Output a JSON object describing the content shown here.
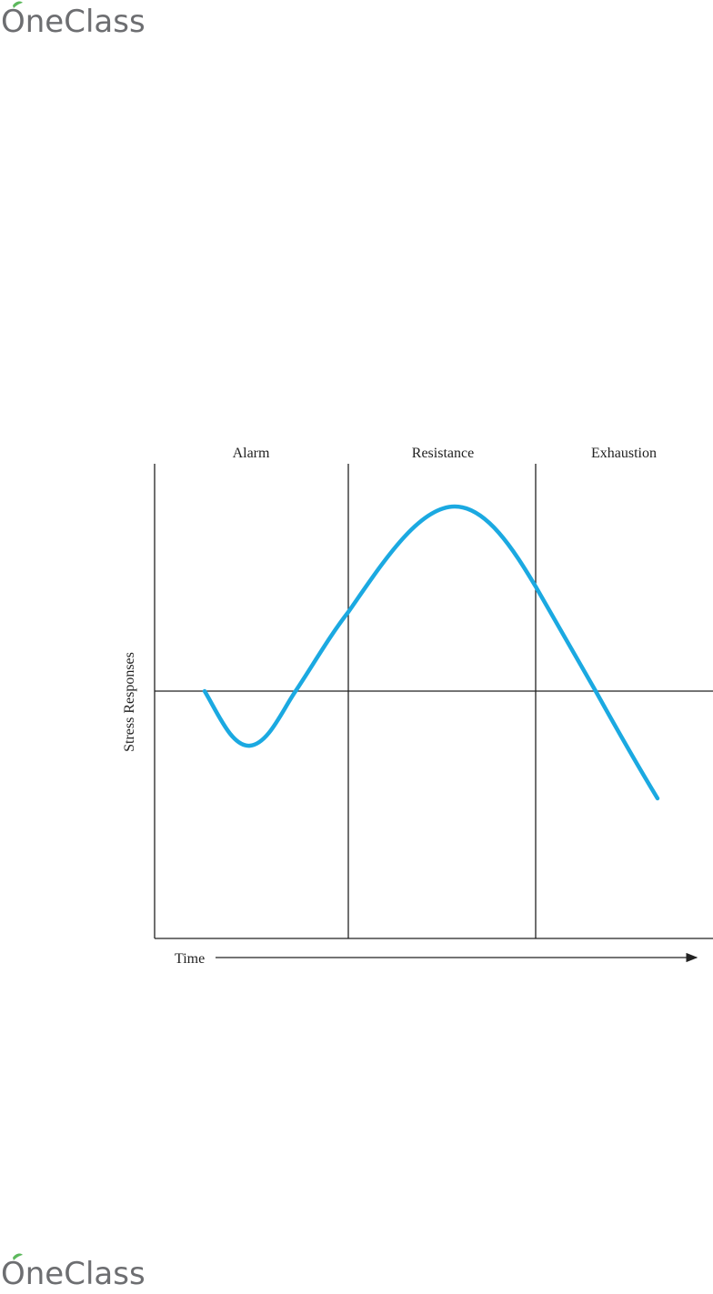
{
  "header": {
    "logo": "OneClass"
  },
  "diagram": {
    "phases": [
      "Alarm",
      "Resistance",
      "Exhaustion"
    ],
    "y_label": "Stress Responses",
    "x_label": "Time"
  },
  "footer": {
    "logo": "OneClass"
  }
}
